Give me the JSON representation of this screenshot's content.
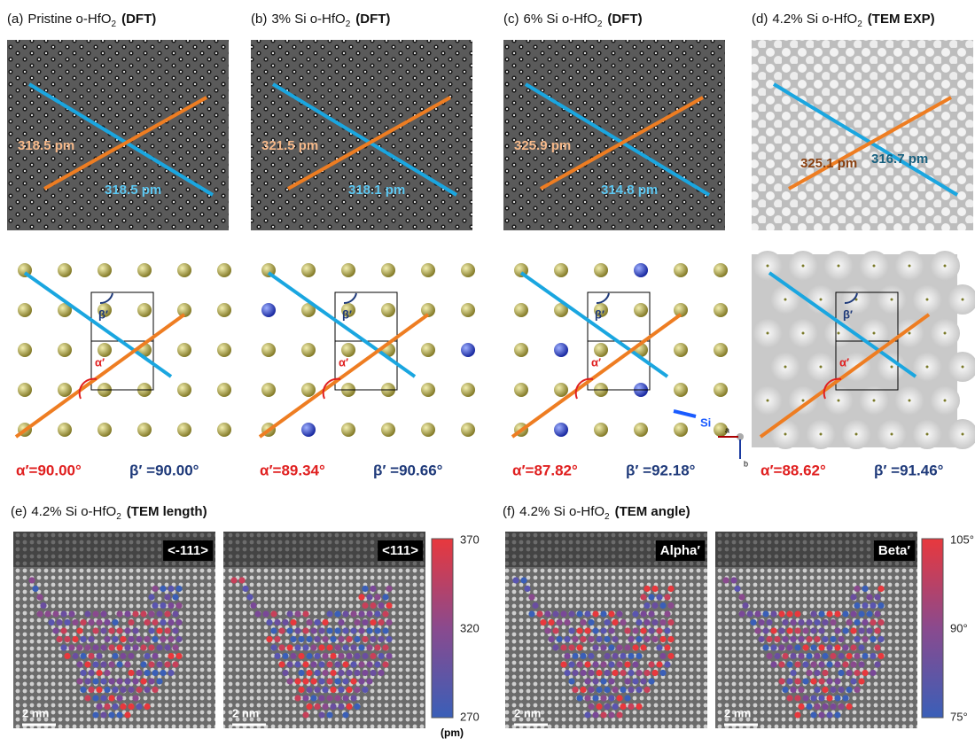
{
  "top_panels": [
    {
      "label": "(a)",
      "title": "Pristine o-HfO",
      "subscript": "2",
      "method": "(DFT)",
      "length_orange": "318.5 pm",
      "length_blue": "318.5 pm",
      "alpha": "α′=90.00°",
      "beta": "β′ =90.00°"
    },
    {
      "label": "(b)",
      "title": "3% Si o-HfO",
      "subscript": "2",
      "method": "(DFT)",
      "length_orange": "321.5 pm",
      "length_blue": "318.1 pm",
      "alpha": "α′=89.34°",
      "beta": "β′ =90.66°"
    },
    {
      "label": "(c)",
      "title": "6% Si o-HfO",
      "subscript": "2",
      "method": "(DFT)",
      "length_orange": "325.9 pm",
      "length_blue": "314.8 pm",
      "alpha": "α′=87.82°",
      "beta": "β′ =92.18°"
    },
    {
      "label": "(d)",
      "title": "4.2% Si o-HfO",
      "subscript": "2",
      "method": "(TEM EXP)",
      "length_orange": "325.1 pm",
      "length_blue": "316.7 pm",
      "alpha": "α′=88.62°",
      "beta": "β′ =91.46°"
    }
  ],
  "lattice_labels": {
    "alpha": "α′",
    "beta": "β′"
  },
  "si_label": "Si",
  "axis_a": "a",
  "axis_b": "b",
  "bottom_panels": [
    {
      "label": "(e)",
      "title": "4.2% Si o-HfO",
      "subscript": "2",
      "method": "(TEM length)",
      "maps": [
        "<-111>",
        "<111>"
      ],
      "scale_bar": "2 nm",
      "colorbar_ticks": [
        "370",
        "320",
        "270"
      ],
      "colorbar_unit": "(pm)"
    },
    {
      "label": "(f)",
      "title": "4.2% Si o-HfO",
      "subscript": "2",
      "method": "(TEM angle)",
      "maps": [
        "Alpha′",
        "Beta′"
      ],
      "scale_bar": "2 nm",
      "colorbar_ticks": [
        "105°",
        "90°",
        "75°"
      ]
    }
  ]
}
